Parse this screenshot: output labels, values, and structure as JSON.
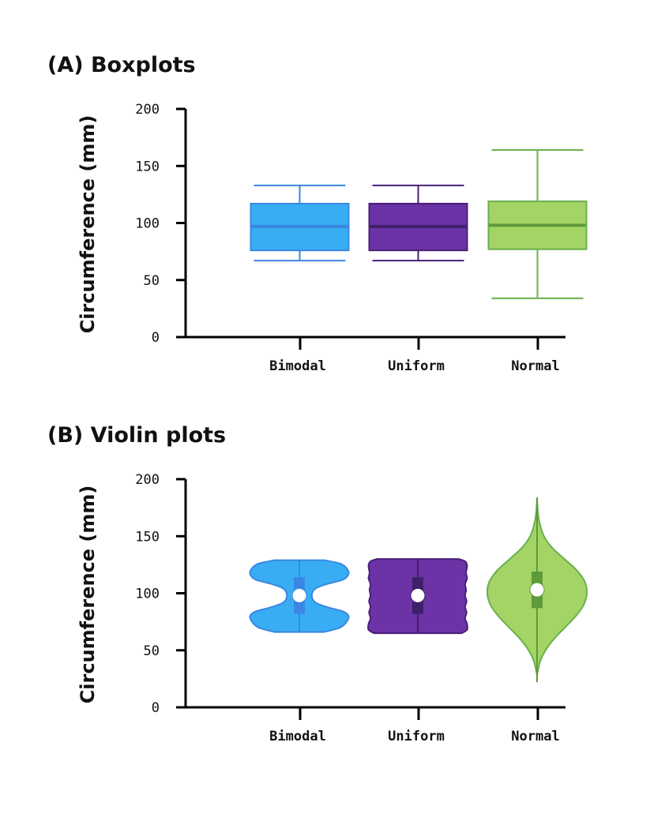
{
  "colors": {
    "Bimodal": {
      "fill": "#38adf3",
      "stroke": "#3a87e3",
      "dark": "#3a87e3"
    },
    "Uniform": {
      "fill": "#6b33a5",
      "stroke": "#4a1f78",
      "dark": "#3e1f6a"
    },
    "Normal": {
      "fill": "#a3d465",
      "stroke": "#6ab04c",
      "dark": "#5e9a3a"
    }
  },
  "chart_data": [
    {
      "type": "box",
      "title": "(A) Boxplots",
      "xlabel": "",
      "ylabel": "Circumference (mm)",
      "ylim": [
        0,
        200
      ],
      "yticks": [
        0,
        50,
        100,
        150,
        200
      ],
      "categories": [
        "Bimodal",
        "Uniform",
        "Normal"
      ],
      "series": [
        {
          "category": "Bimodal",
          "min": 67,
          "q1": 76,
          "median": 97,
          "q3": 117,
          "max": 133
        },
        {
          "category": "Uniform",
          "min": 67,
          "q1": 76,
          "median": 97,
          "q3": 117,
          "max": 133
        },
        {
          "category": "Normal",
          "min": 34,
          "q1": 77,
          "median": 98,
          "q3": 119,
          "max": 164
        }
      ]
    },
    {
      "type": "violin",
      "title": "(B) Violin plots",
      "xlabel": "",
      "ylabel": "Circumference (mm)",
      "ylim": [
        0,
        200
      ],
      "yticks": [
        0,
        50,
        100,
        150,
        200
      ],
      "categories": [
        "Bimodal",
        "Uniform",
        "Normal"
      ],
      "series": [
        {
          "category": "Bimodal",
          "median": 98,
          "q1": 82,
          "q3": 114,
          "min": 66,
          "max": 129,
          "density": [
            [
              66,
              0.5
            ],
            [
              70,
              0.82
            ],
            [
              75,
              0.95
            ],
            [
              80,
              0.99
            ],
            [
              84,
              0.88
            ],
            [
              88,
              0.55
            ],
            [
              92,
              0.32
            ],
            [
              98,
              0.25
            ],
            [
              104,
              0.32
            ],
            [
              108,
              0.55
            ],
            [
              112,
              0.88
            ],
            [
              117,
              0.99
            ],
            [
              122,
              0.95
            ],
            [
              126,
              0.82
            ],
            [
              129,
              0.5
            ]
          ]
        },
        {
          "category": "Uniform",
          "median": 98,
          "q1": 82,
          "q3": 114,
          "min": 65,
          "max": 130,
          "density": [
            [
              65,
              0.88
            ],
            [
              68,
              0.99
            ],
            [
              73,
              0.99
            ],
            [
              78,
              0.95
            ],
            [
              83,
              0.98
            ],
            [
              88,
              0.95
            ],
            [
              93,
              0.98
            ],
            [
              98,
              0.95
            ],
            [
              103,
              0.97
            ],
            [
              108,
              0.95
            ],
            [
              113,
              0.99
            ],
            [
              118,
              0.97
            ],
            [
              124,
              0.99
            ],
            [
              128,
              0.95
            ],
            [
              130,
              0.82
            ]
          ]
        },
        {
          "category": "Normal",
          "median": 103,
          "q1": 87,
          "q3": 119,
          "min": 22,
          "max": 184,
          "density": [
            [
              28,
              0.0
            ],
            [
              40,
              0.06
            ],
            [
              50,
              0.17
            ],
            [
              60,
              0.34
            ],
            [
              70,
              0.56
            ],
            [
              80,
              0.78
            ],
            [
              90,
              0.94
            ],
            [
              100,
              1.0
            ],
            [
              110,
              0.96
            ],
            [
              120,
              0.8
            ],
            [
              130,
              0.55
            ],
            [
              140,
              0.3
            ],
            [
              150,
              0.14
            ],
            [
              160,
              0.06
            ],
            [
              170,
              0.02
            ],
            [
              183,
              0.0
            ]
          ]
        }
      ]
    }
  ]
}
